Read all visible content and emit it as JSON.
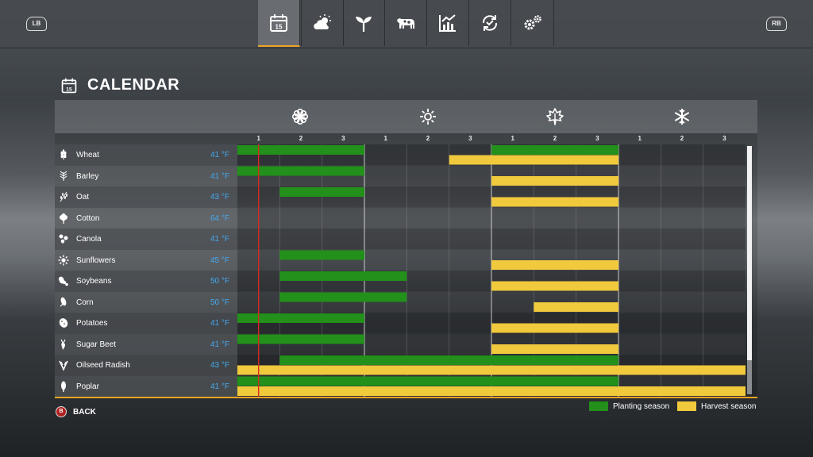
{
  "nav": {
    "lb": "LB",
    "rb": "RB",
    "tabs": [
      {
        "icon": "calendar-icon",
        "active": true
      },
      {
        "icon": "weather-icon",
        "active": false
      },
      {
        "icon": "plant-icon",
        "active": false
      },
      {
        "icon": "cow-icon",
        "active": false
      },
      {
        "icon": "statistics-icon",
        "active": false
      },
      {
        "icon": "cycle-icon",
        "active": false
      },
      {
        "icon": "settings-gears-icon",
        "active": false
      }
    ],
    "calendar_tab_day": "15"
  },
  "page": {
    "title": "CALENDAR",
    "title_icon_day": "15"
  },
  "seasons": [
    {
      "icon": "spring-flower-icon"
    },
    {
      "icon": "summer-sun-icon"
    },
    {
      "icon": "autumn-leaf-icon"
    },
    {
      "icon": "winter-snowflake-icon"
    }
  ],
  "periods": [
    "1",
    "2",
    "3",
    "1",
    "2",
    "3",
    "1",
    "2",
    "3",
    "1",
    "2",
    "3"
  ],
  "current_period": 0.5,
  "crops": [
    {
      "name": "Wheat",
      "temp": "41 °F",
      "icon": "wheat-icon",
      "plant": [
        [
          1,
          3
        ],
        [
          7,
          9
        ]
      ],
      "harvest": [
        [
          6,
          9
        ]
      ]
    },
    {
      "name": "Barley",
      "temp": "41 °F",
      "icon": "barley-icon",
      "plant": [
        [
          1,
          3
        ]
      ],
      "harvest": [
        [
          7,
          9
        ]
      ]
    },
    {
      "name": "Oat",
      "temp": "43 °F",
      "icon": "oat-icon",
      "plant": [
        [
          2,
          3
        ]
      ],
      "harvest": [
        [
          7,
          9
        ]
      ]
    },
    {
      "name": "Cotton",
      "temp": "64 °F",
      "icon": "cotton-icon",
      "plant": [],
      "harvest": []
    },
    {
      "name": "Canola",
      "temp": "41 °F",
      "icon": "canola-icon",
      "plant": [],
      "harvest": []
    },
    {
      "name": "Sunflowers",
      "temp": "45 °F",
      "icon": "sunflower-icon",
      "plant": [
        [
          2,
          3
        ]
      ],
      "harvest": [
        [
          7,
          9
        ]
      ]
    },
    {
      "name": "Soybeans",
      "temp": "50 °F",
      "icon": "soybean-icon",
      "plant": [
        [
          2,
          4
        ]
      ],
      "harvest": [
        [
          7,
          9
        ]
      ]
    },
    {
      "name": "Corn",
      "temp": "50 °F",
      "icon": "corn-icon",
      "plant": [
        [
          2,
          4
        ]
      ],
      "harvest": [
        [
          8,
          9
        ]
      ]
    },
    {
      "name": "Potatoes",
      "temp": "41 °F",
      "icon": "potato-icon",
      "plant": [
        [
          1,
          3
        ]
      ],
      "harvest": [
        [
          7,
          9
        ]
      ]
    },
    {
      "name": "Sugar Beet",
      "temp": "41 °F",
      "icon": "sugarbeet-icon",
      "plant": [
        [
          1,
          3
        ]
      ],
      "harvest": [
        [
          7,
          9
        ]
      ]
    },
    {
      "name": "Oilseed Radish",
      "temp": "43 °F",
      "icon": "oilseed-radish-icon",
      "plant": [
        [
          2,
          9
        ]
      ],
      "harvest": [
        [
          1,
          12
        ]
      ]
    },
    {
      "name": "Poplar",
      "temp": "41 °F",
      "icon": "poplar-icon",
      "plant": [
        [
          1,
          9
        ]
      ],
      "harvest": [
        [
          1,
          12
        ]
      ]
    }
  ],
  "colors": {
    "planting": "#22901a",
    "harvest": "#f0c93c",
    "current": "#d62a22",
    "accent": "#f0a225",
    "temp": "#44a9ef"
  },
  "footer": {
    "back_label": "BACK",
    "back_key": "B"
  },
  "legend": {
    "planting": "Planting season",
    "harvest": "Harvest season"
  }
}
